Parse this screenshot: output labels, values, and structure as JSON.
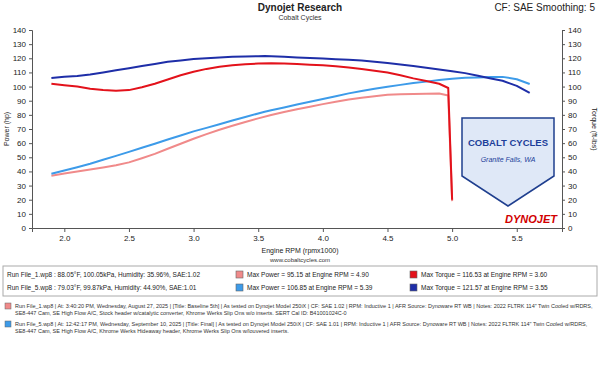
{
  "chart_data": {
    "type": "line",
    "title": "Dynojet Research",
    "subtitle": "Cobalt Cycles",
    "x_label": "Engine RPM (rpmx1000)",
    "y_label": "Power (hp)",
    "y2_label": "Torque (ft-lbs)",
    "annotations": [
      "CF: SAE Smoothing: 5",
      "www.cobaltcycles.com",
      "COBALT CYCLES",
      "Granite Falls, WA",
      "DYNOJET"
    ],
    "run_labels": [
      "Run File_1.wp8 : 88.05°F, 100.05kPa, Humidity: 35.96%, SAE:1.02",
      "Run File_5.wp8 : 79.03°F, 99.87kPa, Humidity: 44.90%, SAE:1.01"
    ],
    "notes": [
      "Run File_1.wp8 | At: 3:40:20 PM, Wednesday, August 27, 2025 | [Title: Baseline 5th] | As tested on Dynojet Model 250iX | CF: SAE 1.02 | RPM: Inductive 1 | AFR Source: Dynoware RT WB | Notes: 2022 FLTRK 114\" Twin Cooled w/RDRS, SE8-447 Cam, SE High Flow A/C, Stock header w/catalytic converter, Khrome Werks Slip Ons w/o inserts. SERT Cal ID: B41001024C-0",
      "Run File_5.wp8 | At: 12:42:17 PM, Wednesday, September 10, 2025 | [Title: Final] | As tested on Dynojet Model 250iX | CF: SAE 1.01 | RPM: Inductive 1 | AFR Source: Dynoware RT WB | Notes: 2022 FLTRK 114\" Twin Cooled w/RDRS, SE8-447 Cam, SE High Flow A/C, Khrome Werks Hideaway header, Khrome Werks Slip Ons w/louvered inserts."
    ],
    "xlim": [
      1.75,
      5.85
    ],
    "xticks": [
      {
        "value": 2,
        "label": "2.0"
      },
      2.5,
      {
        "value": 3,
        "label": "3.0"
      },
      3.5,
      {
        "value": 4,
        "label": "4.0"
      },
      4.5,
      {
        "value": 5,
        "label": "5.0"
      },
      5.5
    ],
    "ylim": [
      0,
      140
    ],
    "yticks": [
      0,
      10,
      20,
      30,
      40,
      50,
      60,
      70,
      80,
      90,
      100,
      110,
      120,
      130,
      140
    ],
    "y2lim": [
      0,
      140
    ],
    "y2ticks": [
      0,
      10,
      20,
      30,
      40,
      50,
      60,
      70,
      80,
      90,
      100,
      110,
      120,
      130,
      140
    ],
    "grid": false,
    "series": [
      {
        "name": "Max Power = 95.15 at Engine RPM = 4.90",
        "color": "#f08a8a",
        "x": [
          1.9,
          2.0,
          2.1,
          2.2,
          2.3,
          2.4,
          2.5,
          2.6,
          2.7,
          2.8,
          2.9,
          3.0,
          3.1,
          3.2,
          3.3,
          3.4,
          3.5,
          3.6,
          3.7,
          3.8,
          3.9,
          4.0,
          4.1,
          4.2,
          4.3,
          4.4,
          4.5,
          4.6,
          4.7,
          4.8,
          4.9,
          4.97,
          5.0
        ],
        "values": [
          36.9,
          38.5,
          40.0,
          41.3,
          42.7,
          44.3,
          46.4,
          49.3,
          52.4,
          56.0,
          59.6,
          63.1,
          66.4,
          69.5,
          72.3,
          75.0,
          77.5,
          79.9,
          82.0,
          83.9,
          85.8,
          87.6,
          89.2,
          90.8,
          92.1,
          93.2,
          94.2,
          94.6,
          94.7,
          95.0,
          95.15,
          93.7,
          19.0
        ]
      },
      {
        "name": "Max Power = 106.85 at Engine RPM = 5.39",
        "color": "#3d9be9",
        "x": [
          1.9,
          2.0,
          2.1,
          2.2,
          2.3,
          2.4,
          2.5,
          2.6,
          2.7,
          2.8,
          2.9,
          3.0,
          3.1,
          3.2,
          3.3,
          3.4,
          3.5,
          3.55,
          3.6,
          3.7,
          3.8,
          3.9,
          4.0,
          4.1,
          4.2,
          4.3,
          4.4,
          4.5,
          4.6,
          4.7,
          4.8,
          4.9,
          5.0,
          5.1,
          5.2,
          5.3,
          5.39,
          5.5,
          5.6
        ],
        "values": [
          38.3,
          40.7,
          43.0,
          45.4,
          48.2,
          51.0,
          53.8,
          56.7,
          59.6,
          62.6,
          65.4,
          68.3,
          70.8,
          73.4,
          76.0,
          78.5,
          81.0,
          82.2,
          83.2,
          85.2,
          87.3,
          89.3,
          91.2,
          93.2,
          95.2,
          96.9,
          98.5,
          99.9,
          101.2,
          102.5,
          103.5,
          104.6,
          105.6,
          106.3,
          106.5,
          106.7,
          106.85,
          105.2,
          101.8
        ]
      },
      {
        "name": "Max Torque = 116.53 at Engine RPM = 3.60",
        "color": "#e3121b",
        "axis": "y2",
        "x": [
          1.9,
          2.0,
          2.1,
          2.2,
          2.3,
          2.4,
          2.5,
          2.6,
          2.7,
          2.8,
          2.9,
          3.0,
          3.1,
          3.2,
          3.3,
          3.4,
          3.5,
          3.6,
          3.7,
          3.8,
          3.9,
          4.0,
          4.1,
          4.2,
          4.3,
          4.4,
          4.5,
          4.6,
          4.7,
          4.8,
          4.9,
          4.97,
          5.0
        ],
        "values": [
          102.0,
          101.0,
          100.0,
          98.5,
          97.5,
          97.0,
          97.5,
          99.5,
          102.0,
          105.0,
          108.0,
          110.5,
          112.5,
          114.0,
          115.0,
          115.8,
          116.3,
          116.53,
          116.4,
          116.0,
          115.5,
          115.0,
          114.3,
          113.5,
          112.5,
          111.2,
          110.0,
          108.0,
          105.8,
          104.0,
          101.98,
          99.0,
          20.0
        ]
      },
      {
        "name": "Max Torque = 121.57 at Engine RPM = 3.55",
        "color": "#1e2ea8",
        "axis": "y2",
        "x": [
          1.9,
          2.0,
          2.1,
          2.2,
          2.3,
          2.4,
          2.5,
          2.6,
          2.7,
          2.8,
          2.9,
          3.0,
          3.1,
          3.2,
          3.3,
          3.4,
          3.5,
          3.55,
          3.6,
          3.7,
          3.8,
          3.9,
          4.0,
          4.1,
          4.2,
          4.3,
          4.4,
          4.5,
          4.6,
          4.7,
          4.8,
          4.9,
          5.0,
          5.1,
          5.2,
          5.3,
          5.39,
          5.5,
          5.6
        ],
        "values": [
          106.0,
          107.0,
          107.5,
          108.5,
          110.0,
          111.5,
          113.0,
          114.5,
          116.0,
          117.5,
          118.5,
          119.5,
          120.0,
          120.5,
          121.0,
          121.2,
          121.5,
          121.57,
          121.4,
          121.0,
          120.6,
          120.2,
          119.8,
          119.4,
          119.0,
          118.4,
          117.6,
          116.6,
          115.6,
          114.5,
          113.3,
          112.1,
          110.9,
          109.5,
          107.6,
          105.7,
          104.1,
          100.5,
          95.5
        ]
      }
    ]
  }
}
